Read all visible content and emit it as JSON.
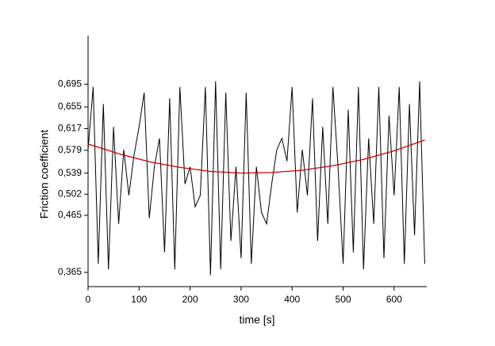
{
  "chart_data": {
    "type": "line",
    "x_label": "time [s]",
    "y_label": "Friction coefficient",
    "xlim": [
      0,
      664
    ],
    "ylim": [
      0.34,
      0.78
    ],
    "xticks": [
      0,
      100,
      200,
      300,
      400,
      500,
      600
    ],
    "yticks": [
      {
        "value": 0.365,
        "label": "0,365"
      },
      {
        "value": 0.465,
        "label": "0,465"
      },
      {
        "value": 0.502,
        "label": "0,502"
      },
      {
        "value": 0.539,
        "label": "0,539"
      },
      {
        "value": 0.579,
        "label": "0,579"
      },
      {
        "value": 0.617,
        "label": "0,617"
      },
      {
        "value": 0.655,
        "label": "0,655"
      },
      {
        "value": 0.695,
        "label": "0,695"
      }
    ],
    "grid": false,
    "series": [
      {
        "color": "#000000",
        "x": [
          0,
          10,
          20,
          30,
          40,
          50,
          60,
          70,
          80,
          90,
          100,
          110,
          120,
          130,
          140,
          150,
          160,
          170,
          180,
          190,
          200,
          210,
          220,
          230,
          240,
          250,
          260,
          270,
          280,
          290,
          300,
          310,
          320,
          330,
          340,
          350,
          360,
          370,
          380,
          390,
          400,
          410,
          420,
          430,
          440,
          450,
          460,
          470,
          480,
          490,
          500,
          510,
          520,
          530,
          540,
          550,
          560,
          570,
          580,
          590,
          600,
          610,
          620,
          630,
          640,
          650,
          660
        ],
        "values": [
          0.58,
          0.69,
          0.38,
          0.66,
          0.37,
          0.62,
          0.45,
          0.58,
          0.5,
          0.57,
          0.62,
          0.68,
          0.46,
          0.55,
          0.6,
          0.4,
          0.67,
          0.37,
          0.69,
          0.52,
          0.55,
          0.48,
          0.5,
          0.69,
          0.36,
          0.7,
          0.37,
          0.68,
          0.42,
          0.55,
          0.39,
          0.68,
          0.38,
          0.55,
          0.47,
          0.45,
          0.52,
          0.58,
          0.6,
          0.56,
          0.69,
          0.47,
          0.58,
          0.5,
          0.67,
          0.42,
          0.62,
          0.45,
          0.69,
          0.55,
          0.38,
          0.65,
          0.4,
          0.69,
          0.37,
          0.6,
          0.45,
          0.69,
          0.39,
          0.64,
          0.5,
          0.69,
          0.38,
          0.66,
          0.43,
          0.7,
          0.38
        ]
      },
      {
        "color": "#cc0000",
        "x": [
          0,
          60,
          120,
          180,
          240,
          300,
          360,
          420,
          480,
          540,
          600,
          660
        ],
        "values": [
          0.59,
          0.573,
          0.559,
          0.549,
          0.542,
          0.539,
          0.54,
          0.544,
          0.552,
          0.563,
          0.578,
          0.597
        ]
      }
    ]
  }
}
